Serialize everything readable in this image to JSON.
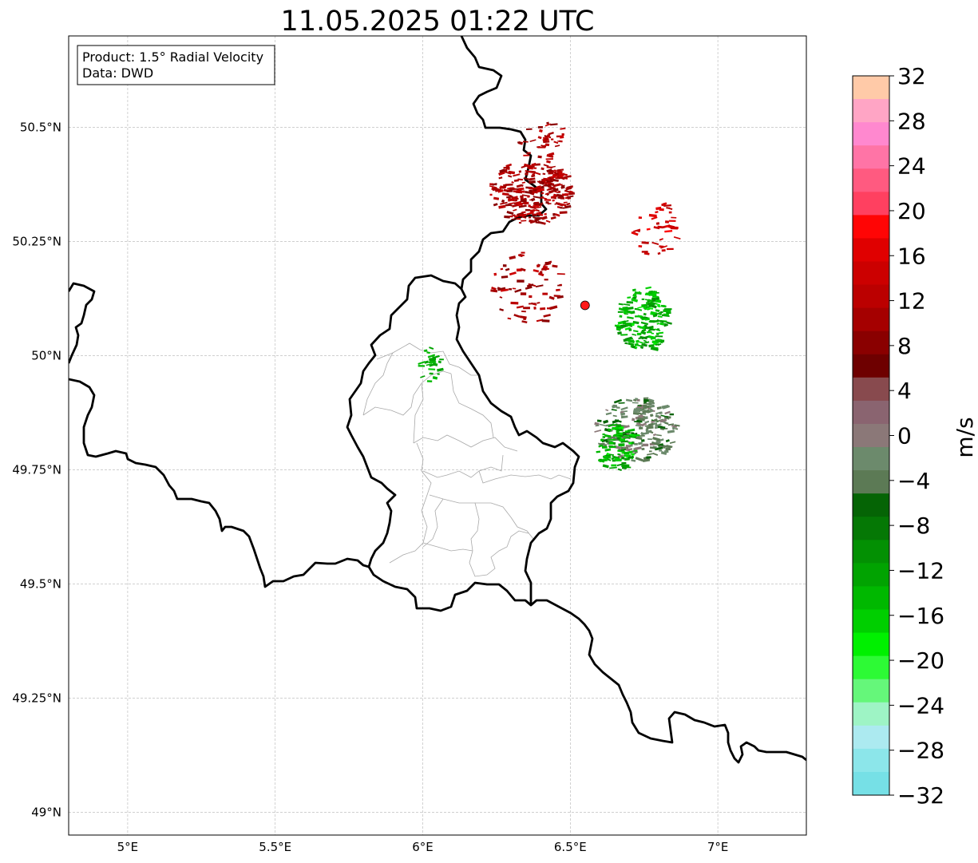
{
  "title": "11.05.2025 01:22 UTC",
  "info_box": {
    "product": "Product: 1.5° Radial Velocity",
    "source": "Data: DWD"
  },
  "axes": {
    "lon_ticks": [
      "5°E",
      "5.5°E",
      "6°E",
      "6.5°E",
      "7°E"
    ],
    "lat_ticks": [
      "50.5°N",
      "50.25°N",
      "50°N",
      "49.75°N",
      "49.5°N",
      "49.25°N",
      "49°N"
    ],
    "lon_range": [
      4.8,
      7.3
    ],
    "lat_range": [
      48.95,
      50.7
    ],
    "grid": true
  },
  "radar_site": {
    "lon": 6.55,
    "lat": 50.11,
    "color": "#ff1a1a"
  },
  "colorbar": {
    "label": "m/s",
    "ticks": [
      "32",
      "28",
      "24",
      "20",
      "16",
      "12",
      "8",
      "4",
      "0",
      "−4",
      "−8",
      "−12",
      "−16",
      "−20",
      "−24",
      "−28",
      "−32"
    ],
    "range": [
      -32,
      32
    ],
    "colors": [
      "#ffcaa8",
      "#ffa5c5",
      "#ff88cf",
      "#ff74a6",
      "#ff5a80",
      "#ff4060",
      "#ff0505",
      "#e00000",
      "#cc0000",
      "#bb0000",
      "#a50000",
      "#8a0000",
      "#6e0000",
      "#884a4e",
      "#8a6470",
      "#8b7878",
      "#6c8a6c",
      "#5c7a55",
      "#056405",
      "#057805",
      "#039003",
      "#01a301",
      "#00b800",
      "#00cf00",
      "#00f000",
      "#2dfa35",
      "#65f77a",
      "#9ef4c5",
      "#aceaf0",
      "#8ce6ea",
      "#76e0e6"
    ]
  },
  "chart_data": {
    "type": "map",
    "title": "11.05.2025 01:22 UTC",
    "product": "1.5° Radial Velocity",
    "unit": "m/s",
    "value_range": [
      -32,
      32
    ],
    "echo_regions": [
      {
        "area": "north-west (around 6.35°E 50.35°N)",
        "velocity_range": [
          8,
          14
        ]
      },
      {
        "area": "north-east (6.7–6.85°E, 50.2–50.35°N)",
        "velocity_range": [
          12,
          18
        ]
      },
      {
        "area": "east of radar (6.7–6.85°E, 50.0–50.15°N)",
        "velocity_range": [
          -18,
          -10
        ]
      },
      {
        "area": "south-east (6.6–6.9°E, 49.75–49.9°N)",
        "velocity_range": [
          -6,
          0
        ]
      },
      {
        "area": "west over Luxembourg north (5.98–6.05°E, 49.9–50.0°N)",
        "velocity_range": [
          -16,
          -12
        ]
      }
    ]
  }
}
